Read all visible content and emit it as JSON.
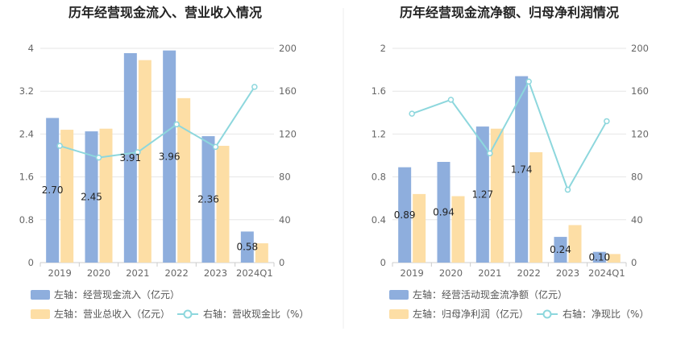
{
  "chart_data": [
    {
      "type": "bar",
      "title": "历年经营现金流入、营业收入情况",
      "categories": [
        "2019",
        "2020",
        "2021",
        "2022",
        "2023",
        "2024Q1"
      ],
      "y_left_ticks": [
        "0",
        "0.8",
        "1.6",
        "2.4",
        "3.2",
        "4"
      ],
      "y_right_ticks": [
        "0",
        "40",
        "80",
        "120",
        "160",
        "200"
      ],
      "ylim_left": [
        0,
        4
      ],
      "ylim_right": [
        0,
        200
      ],
      "grid": true,
      "series": [
        {
          "name": "左轴：经营现金流入（亿元）",
          "kind": "bar",
          "axis": "left",
          "color": "#8eaedd",
          "values": [
            2.7,
            2.45,
            3.91,
            3.96,
            2.36,
            0.58
          ],
          "labels": [
            "2.70",
            "2.45",
            "3.91",
            "3.96",
            "2.36",
            "0.58"
          ]
        },
        {
          "name": "左轴：营业总收入（亿元）",
          "kind": "bar",
          "axis": "left",
          "color": "#fddea5",
          "values": [
            2.48,
            2.5,
            3.78,
            3.07,
            2.18,
            0.36
          ]
        },
        {
          "name": "右轴：营收现金比（%）",
          "kind": "line",
          "axis": "right",
          "color": "#8dd7dd",
          "values": [
            109,
            98,
            103,
            129,
            108,
            164
          ]
        }
      ],
      "legend_position": "bottom"
    },
    {
      "type": "bar",
      "title": "历年经营现金流净额、归母净利润情况",
      "categories": [
        "2019",
        "2020",
        "2021",
        "2022",
        "2023",
        "2024Q1"
      ],
      "y_left_ticks": [
        "0",
        "0.4",
        "0.8",
        "1.2",
        "1.6",
        "2"
      ],
      "y_right_ticks": [
        "0",
        "40",
        "80",
        "120",
        "160",
        "200"
      ],
      "ylim_left": [
        0,
        2
      ],
      "ylim_right": [
        0,
        200
      ],
      "grid": true,
      "series": [
        {
          "name": "左轴：经营活动现金流净额（亿元）",
          "kind": "bar",
          "axis": "left",
          "color": "#8eaedd",
          "values": [
            0.89,
            0.94,
            1.27,
            1.74,
            0.24,
            0.1
          ],
          "labels": [
            "0.89",
            "0.94",
            "1.27",
            "1.74",
            "0.24",
            "0.10"
          ]
        },
        {
          "name": "左轴：归母净利润（亿元）",
          "kind": "bar",
          "axis": "left",
          "color": "#fddea5",
          "values": [
            0.64,
            0.62,
            1.25,
            1.03,
            0.35,
            0.08
          ]
        },
        {
          "name": "右轴：净现比（%）",
          "kind": "line",
          "axis": "right",
          "color": "#8dd7dd",
          "values": [
            139,
            152,
            102,
            169,
            68,
            132
          ]
        }
      ],
      "legend_position": "bottom"
    }
  ]
}
